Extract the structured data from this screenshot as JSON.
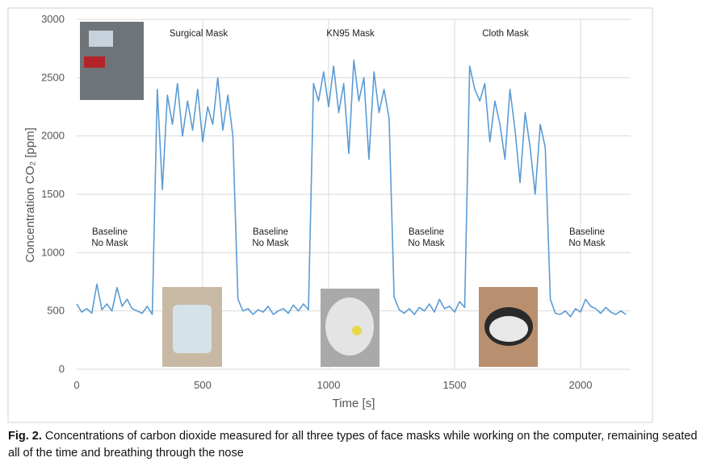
{
  "chart_data": {
    "type": "line",
    "x_label": "Time [s]",
    "y_label": "Concentration CO₂ [ppm]",
    "phase_labels": [
      "Surgical Mask",
      "KN95 Mask",
      "Cloth Mask"
    ],
    "baseline_labels": [
      [
        "Baseline",
        "No Mask"
      ],
      [
        "Baseline",
        "No Mask"
      ],
      [
        "Baseline",
        "No Mask"
      ],
      [
        "Baseline",
        "No Mask"
      ]
    ],
    "x": [
      0,
      20,
      40,
      60,
      80,
      100,
      120,
      140,
      160,
      180,
      200,
      220,
      240,
      260,
      280,
      300,
      320,
      340,
      360,
      380,
      400,
      420,
      440,
      460,
      480,
      500,
      520,
      540,
      560,
      580,
      600,
      620,
      640,
      660,
      680,
      700,
      720,
      740,
      760,
      780,
      800,
      820,
      840,
      860,
      880,
      900,
      920,
      940,
      960,
      980,
      1000,
      1020,
      1040,
      1060,
      1080,
      1100,
      1120,
      1140,
      1160,
      1180,
      1200,
      1220,
      1240,
      1260,
      1280,
      1300,
      1320,
      1340,
      1360,
      1380,
      1400,
      1420,
      1440,
      1460,
      1480,
      1500,
      1520,
      1540,
      1560,
      1580,
      1600,
      1620,
      1640,
      1660,
      1680,
      1700,
      1720,
      1740,
      1760,
      1780,
      1800,
      1820,
      1840,
      1860,
      1880,
      1900,
      1920,
      1940,
      1960,
      1980,
      2000,
      2020,
      2040,
      2060,
      2080,
      2100,
      2120,
      2140,
      2160,
      2180
    ],
    "series": [
      {
        "name": "CO2",
        "color": "#5b9bd5",
        "values": [
          560,
          490,
          520,
          480,
          730,
          510,
          560,
          500,
          700,
          540,
          600,
          520,
          500,
          480,
          540,
          470,
          2400,
          1540,
          2350,
          2100,
          2450,
          2000,
          2300,
          2050,
          2400,
          1950,
          2250,
          2100,
          2500,
          2050,
          2350,
          2000,
          600,
          500,
          520,
          470,
          510,
          490,
          540,
          470,
          500,
          520,
          480,
          550,
          500,
          560,
          510,
          2450,
          2300,
          2550,
          2250,
          2600,
          2200,
          2450,
          1850,
          2650,
          2300,
          2500,
          1800,
          2550,
          2200,
          2400,
          2150,
          620,
          510,
          480,
          520,
          470,
          530,
          500,
          560,
          490,
          600,
          520,
          540,
          490,
          580,
          530,
          2600,
          2400,
          2300,
          2450,
          1950,
          2300,
          2100,
          1800,
          2400,
          2050,
          1600,
          2200,
          1900,
          1500,
          2100,
          1900,
          600,
          480,
          470,
          500,
          450,
          520,
          490,
          600,
          540,
          520,
          480,
          530,
          490,
          470,
          500,
          470
        ]
      }
    ],
    "xlim": [
      0,
      2200
    ],
    "ylim": [
      0,
      3000
    ],
    "xticks": [
      0,
      500,
      1000,
      1500,
      2000
    ],
    "yticks": [
      0,
      500,
      1000,
      1500,
      2000,
      2500,
      3000
    ],
    "grid": true
  },
  "caption": {
    "label": "Fig. 2.",
    "text": " Concentrations of carbon dioxide measured for all three types of face masks while working on the computer, remaining seated all of the time and breathing through the nose"
  }
}
